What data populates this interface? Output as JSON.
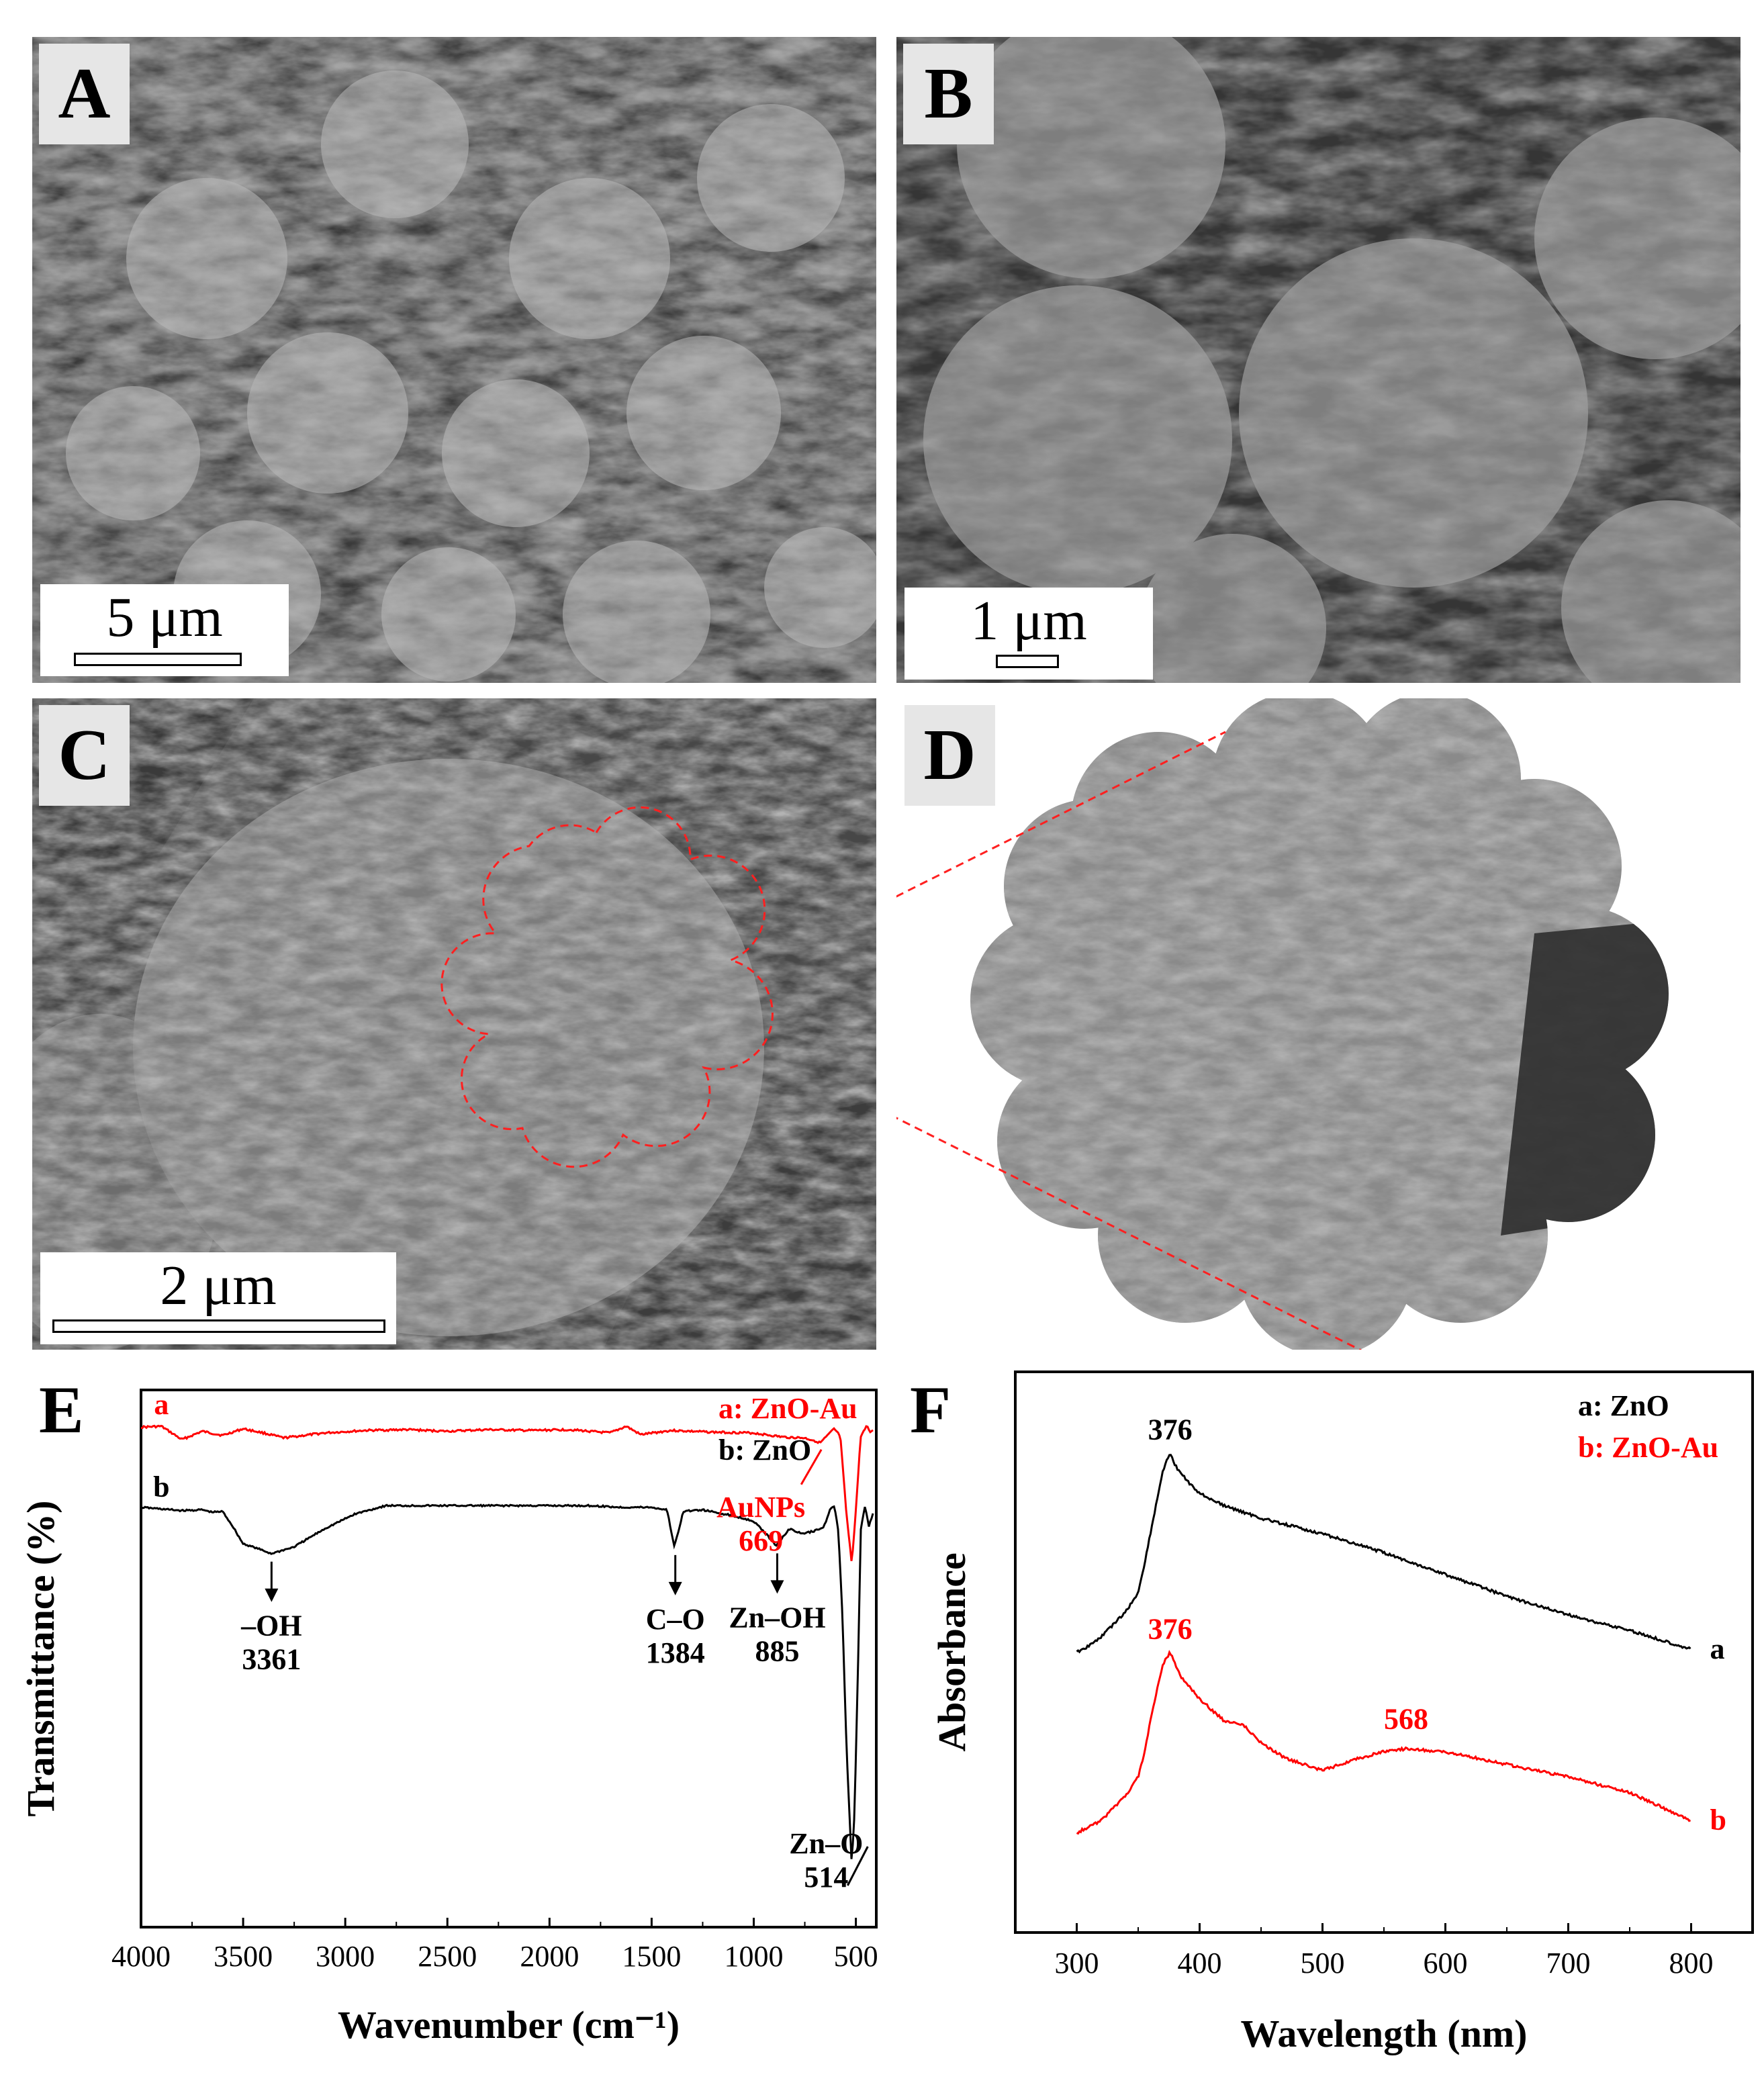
{
  "panels": {
    "A": {
      "label": "A",
      "scale": "5 μm"
    },
    "B": {
      "label": "B",
      "scale": "1 μm"
    },
    "C": {
      "label": "C",
      "scale": "2 μm"
    },
    "D": {
      "label": "D"
    },
    "E": {
      "label": "E"
    },
    "F": {
      "label": "F"
    }
  },
  "chart_data": [
    {
      "panel": "E",
      "type": "line",
      "xlabel": "Wavenumber (cm⁻¹)",
      "ylabel": "Transmittance (%)",
      "xlim": [
        4000,
        400
      ],
      "xticks": [
        4000,
        3500,
        3000,
        2500,
        2000,
        1500,
        1000,
        500
      ],
      "xreversed": true,
      "legend": [
        {
          "text": "a: ZnO-Au",
          "color": "#ff0000"
        },
        {
          "text": "b: ZnO",
          "color": "#000000"
        }
      ],
      "series": [
        {
          "name": "a",
          "color": "#ff0000",
          "x": [
            4000,
            3900,
            3850,
            3800,
            3700,
            3600,
            3500,
            3400,
            3300,
            3100,
            2900,
            2700,
            2500,
            2300,
            2100,
            1900,
            1700,
            1620,
            1550,
            1400,
            1200,
            1000,
            850,
            750,
            700,
            669,
            640,
            600,
            570,
            540,
            514,
            495,
            470,
            440,
            420,
            410
          ],
          "y": [
            80.5,
            80.6,
            79.8,
            79.0,
            80.0,
            79.5,
            80.3,
            79.8,
            79.2,
            79.8,
            80.1,
            80.2,
            80.0,
            80.2,
            80.1,
            80.2,
            79.8,
            80.6,
            79.6,
            80.1,
            79.9,
            79.8,
            79.3,
            79.2,
            78.9,
            78.6,
            79.3,
            80.3,
            79.4,
            70.0,
            64.0,
            70.0,
            79.4,
            80.6,
            79.8,
            80.2
          ]
        },
        {
          "name": "b",
          "color": "#000000",
          "x": [
            4000,
            3900,
            3800,
            3700,
            3650,
            3600,
            3550,
            3500,
            3450,
            3361,
            3250,
            3100,
            2950,
            2800,
            2600,
            2400,
            2200,
            2000,
            1800,
            1650,
            1500,
            1420,
            1384,
            1340,
            1250,
            1100,
            1000,
            950,
            885,
            820,
            760,
            700,
            650,
            620,
            600,
            580,
            560,
            540,
            514,
            500,
            480,
            470,
            450,
            430,
            410
          ],
          "y": [
            70.8,
            70.6,
            70.4,
            70.5,
            70.2,
            70.3,
            68.5,
            66.4,
            66.0,
            65.2,
            66.0,
            68.2,
            70.0,
            71.0,
            71.0,
            71.0,
            71.0,
            71.0,
            71.0,
            70.8,
            70.8,
            70.5,
            66.0,
            70.3,
            70.5,
            69.8,
            69.2,
            68.0,
            66.2,
            68.2,
            67.6,
            67.9,
            68.5,
            70.5,
            71.0,
            68.0,
            58.0,
            42.0,
            27.5,
            34.0,
            55.0,
            68.0,
            71.0,
            68.5,
            70.0
          ]
        }
      ],
      "annotations": [
        {
          "text": "a",
          "x": 3900,
          "series": "a"
        },
        {
          "text": "b",
          "x": 3900,
          "series": "b"
        },
        {
          "text": "–OH",
          "x": 3361,
          "color": "#000000"
        },
        {
          "text": "3361",
          "x": 3361,
          "color": "#000000"
        },
        {
          "text": "C–O",
          "x": 1384,
          "color": "#000000"
        },
        {
          "text": "1384",
          "x": 1384,
          "color": "#000000"
        },
        {
          "text": "Zn–OH",
          "x": 885,
          "color": "#000000"
        },
        {
          "text": "885",
          "x": 885,
          "color": "#000000"
        },
        {
          "text": "Zn–O",
          "x": 514,
          "color": "#000000"
        },
        {
          "text": "514",
          "x": 514,
          "color": "#000000"
        },
        {
          "text": "AuNPs",
          "x": 669,
          "color": "#ff0000"
        },
        {
          "text": "669",
          "x": 669,
          "color": "#ff0000"
        }
      ]
    },
    {
      "panel": "F",
      "type": "line",
      "xlabel": "Wavelength (nm)",
      "ylabel": "Absorbance",
      "xlim": [
        250,
        850
      ],
      "xticks": [
        300,
        400,
        500,
        600,
        700,
        800
      ],
      "legend": [
        {
          "text": "a: ZnO",
          "color": "#000000"
        },
        {
          "text": "b: ZnO-Au",
          "color": "#ff0000"
        }
      ],
      "series": [
        {
          "name": "a",
          "color": "#000000",
          "x": [
            300,
            310,
            320,
            330,
            340,
            350,
            355,
            360,
            365,
            370,
            376,
            380,
            390,
            400,
            420,
            450,
            480,
            500,
            550,
            600,
            650,
            700,
            750,
            800
          ],
          "y": [
            0.3,
            0.32,
            0.35,
            0.39,
            0.43,
            0.49,
            0.58,
            0.68,
            0.78,
            0.88,
            0.94,
            0.9,
            0.85,
            0.81,
            0.77,
            0.73,
            0.7,
            0.68,
            0.62,
            0.55,
            0.48,
            0.42,
            0.37,
            0.31
          ]
        },
        {
          "name": "b",
          "color": "#ff0000",
          "x": [
            300,
            310,
            320,
            330,
            340,
            350,
            355,
            360,
            365,
            370,
            376,
            385,
            400,
            420,
            435,
            450,
            470,
            500,
            530,
            550,
            568,
            600,
            650,
            700,
            750,
            800
          ],
          "y": [
            -0.28,
            -0.26,
            -0.24,
            -0.2,
            -0.16,
            -0.1,
            -0.03,
            0.08,
            0.17,
            0.26,
            0.3,
            0.22,
            0.15,
            0.08,
            0.07,
            0.01,
            -0.04,
            -0.08,
            -0.04,
            -0.02,
            -0.01,
            -0.02,
            -0.06,
            -0.1,
            -0.15,
            -0.24
          ]
        }
      ],
      "annotations": [
        {
          "text": "376",
          "x": 376,
          "series": "a",
          "color": "#000000"
        },
        {
          "text": "376",
          "x": 376,
          "series": "b",
          "color": "#ff0000"
        },
        {
          "text": "568",
          "x": 568,
          "series": "b",
          "color": "#ff0000"
        },
        {
          "text": "a",
          "x": 800,
          "series": "a",
          "color": "#000000"
        },
        {
          "text": "b",
          "x": 800,
          "series": "b",
          "color": "#ff0000"
        }
      ]
    }
  ]
}
